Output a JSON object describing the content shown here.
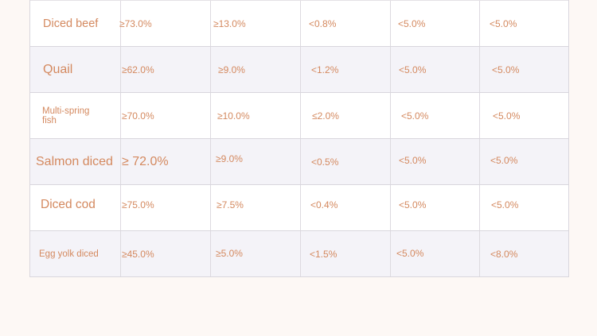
{
  "rows": [
    {
      "name": "Diced beef",
      "values": [
        "≥73.0%",
        "≥13.0%",
        "<0.8%",
        "<5.0%",
        "<5.0%"
      ]
    },
    {
      "name": "Quail",
      "values": [
        "≥62.0%",
        "≥9.0%",
        "<1.2%",
        "<5.0%",
        "<5.0%"
      ]
    },
    {
      "name": "Multi-spring fish",
      "values": [
        "≥70.0%",
        "≥10.0%",
        "≤2.0%",
        "<5.0%",
        "<5.0%"
      ]
    },
    {
      "name": "Salmon diced",
      "values": [
        "≥ 72.0%",
        "≥9.0%",
        "<0.5%",
        "<5.0%",
        "<5.0%"
      ]
    },
    {
      "name": "Diced cod",
      "values": [
        "≥75.0%",
        "≥7.5%",
        "<0.4%",
        "<5.0%",
        "<5.0%"
      ]
    },
    {
      "name": "Egg yolk diced",
      "values": [
        "≥45.0%",
        "≥5.0%",
        "<1.5%",
        "<5.0%",
        "<8.0%"
      ]
    }
  ],
  "colors": {
    "text": "#d4895f",
    "row_white": "#ffffff",
    "row_tint": "#f4f3f8",
    "background": "#fdf8f5",
    "border": "#d9d6dd"
  }
}
